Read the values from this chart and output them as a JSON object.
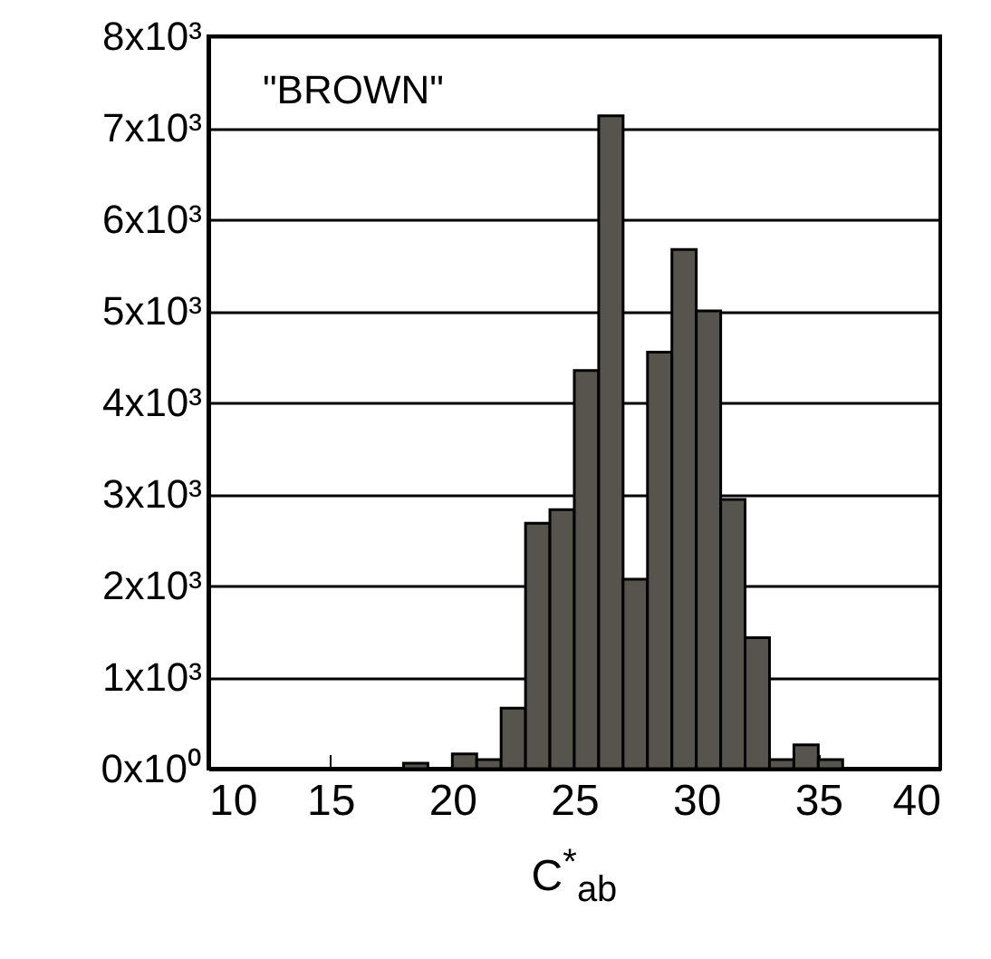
{
  "chart_data": {
    "type": "histogram",
    "xlabel": "C$^{*}$$_{ab}$",
    "annotations": [
      "\"BROWN\""
    ],
    "bins": [
      18,
      19,
      20,
      21,
      22,
      23,
      24,
      25,
      26,
      27,
      28,
      29,
      30,
      31,
      32,
      33,
      34,
      35,
      36
    ],
    "values": [
      60,
      0,
      160,
      100,
      660,
      2680,
      2830,
      4350,
      7130,
      2070,
      4550,
      5670,
      5000,
      2940,
      1430,
      100,
      260,
      100
    ],
    "color": "#57544e",
    "xlim": [
      10,
      40
    ],
    "xticks": [
      10,
      15,
      20,
      25,
      30,
      35,
      40
    ],
    "ylim": [
      0,
      8000
    ],
    "yticks": [
      {
        "value": 0,
        "label": "0x10⁰"
      },
      {
        "value": 1000,
        "label": "1x10³"
      },
      {
        "value": 2000,
        "label": "2x10³"
      },
      {
        "value": 3000,
        "label": "3x10³"
      },
      {
        "value": 4000,
        "label": "4x10³"
      },
      {
        "value": 5000,
        "label": "5x10³"
      },
      {
        "value": 6000,
        "label": "6x10³"
      },
      {
        "value": 7000,
        "label": "7x10³"
      },
      {
        "value": 8000,
        "label": "8x10³"
      }
    ],
    "grid": "y"
  }
}
